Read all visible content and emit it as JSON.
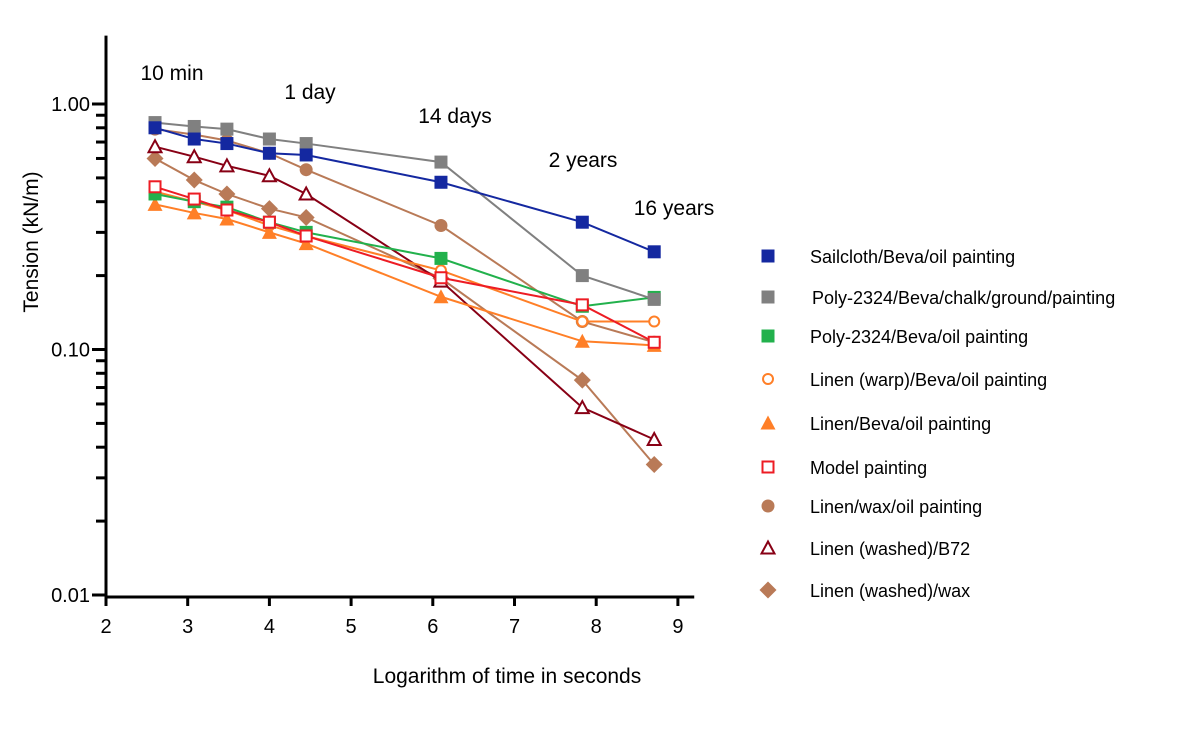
{
  "chart_data": {
    "type": "line",
    "title": "",
    "xlabel": "Logarithm of time in seconds",
    "ylabel": "Tension (kN/m)",
    "xlim": [
      2,
      9.2
    ],
    "ylim": [
      0.01,
      1.9
    ],
    "y_scale": "log",
    "grid": false,
    "legend_position": "right",
    "x_ticks": [
      "2",
      "3",
      "4",
      "5",
      "6",
      "7",
      "8",
      "9"
    ],
    "y_ticks": [
      "1.00",
      "0.10",
      "0.01"
    ],
    "annotations": [
      {
        "text": "10 min",
        "x": 2.6
      },
      {
        "text": "1 day",
        "x": 4.95
      },
      {
        "text": "14 days",
        "x": 6.14
      },
      {
        "text": "2 years",
        "x": 7.3
      },
      {
        "text": "16 years",
        "x": 8.3
      }
    ],
    "x": [
      2.6,
      3.08,
      3.48,
      4.0,
      4.45,
      6.1,
      7.83,
      8.71
    ],
    "series": [
      {
        "name": "Sailcloth/Beva/oil painting",
        "color": "#1428a0",
        "marker": "square-filled",
        "values": [
          0.8,
          0.72,
          0.69,
          0.63,
          0.62,
          0.48,
          0.33,
          0.25
        ]
      },
      {
        "name": "Poly-2324/Beva/chalk/ground/painting",
        "color": "#808080",
        "marker": "square-filled",
        "values": [
          0.84,
          0.81,
          0.79,
          0.72,
          0.69,
          0.58,
          0.2,
          0.16
        ]
      },
      {
        "name": "Poly-2324/Beva/oil painting",
        "color": "#22b14c",
        "marker": "square-filled",
        "values": [
          0.43,
          0.4,
          0.38,
          0.33,
          0.3,
          0.235,
          0.15,
          0.163
        ]
      },
      {
        "name": "Linen (warp)/Beva/oil painting",
        "color": "#ff7f27",
        "marker": "circle-open",
        "values": [
          0.44,
          0.4,
          0.37,
          0.32,
          0.29,
          0.21,
          0.13,
          0.13
        ]
      },
      {
        "name": "Linen/Beva/oil painting",
        "color": "#ff7f27",
        "marker": "triangle-filled",
        "values": [
          0.39,
          0.36,
          0.34,
          0.3,
          0.27,
          0.164,
          0.108,
          0.104
        ]
      },
      {
        "name": "Model painting",
        "color": "#ed1c24",
        "marker": "square-open",
        "values": [
          0.46,
          0.41,
          0.37,
          0.33,
          0.29,
          0.196,
          0.152,
          0.107
        ]
      },
      {
        "name": "Linen/wax/oil painting",
        "color": "#b97a57",
        "marker": "circle-filled",
        "values": [
          0.79,
          0.75,
          0.71,
          0.63,
          0.54,
          0.32,
          0.13,
          0.107
        ]
      },
      {
        "name": "Linen (washed)/B72",
        "color": "#880015",
        "marker": "triangle-open",
        "values": [
          0.67,
          0.61,
          0.56,
          0.51,
          0.43,
          0.19,
          0.058,
          0.043
        ]
      },
      {
        "name": "Linen (washed)/wax",
        "color": "#b97a57",
        "marker": "diamond-filled",
        "values": [
          0.6,
          0.49,
          0.43,
          0.375,
          0.345,
          0.195,
          0.075,
          0.034
        ]
      }
    ]
  }
}
